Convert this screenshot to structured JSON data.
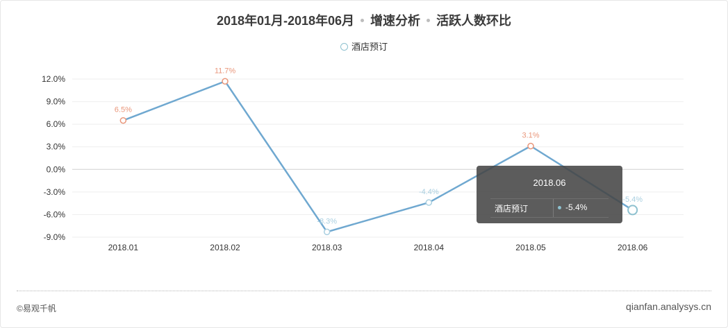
{
  "title": {
    "period": "2018年01月-2018年06月",
    "part2": "增速分析",
    "part3": "活跃人数环比"
  },
  "chart_data": {
    "type": "line",
    "categories": [
      "2018.01",
      "2018.02",
      "2018.03",
      "2018.04",
      "2018.05",
      "2018.06"
    ],
    "series": [
      {
        "name": "酒店预订",
        "values": [
          6.5,
          11.7,
          -8.3,
          -4.4,
          3.1,
          -5.4
        ],
        "labels": [
          "6.5%",
          "11.7%",
          "-8.3%",
          "-4.4%",
          "3.1%",
          "-5.4%"
        ]
      }
    ],
    "yticks": [
      12,
      9,
      6,
      3,
      0,
      -3,
      -6,
      -9
    ],
    "ytick_labels": [
      "12.0%",
      "9.0%",
      "6.0%",
      "3.0%",
      "0.0%",
      "-3.0%",
      "-6.0%",
      "-9.0%"
    ],
    "ylim": [
      -9,
      12
    ],
    "grid": true,
    "legend_position": "top-center",
    "colors": {
      "line": "#6fa8d0",
      "positive_marker": "#e9967a",
      "negative_marker": "#a9cfe0",
      "highlight_marker": "#8ec1cf"
    }
  },
  "tooltip": {
    "title": "2018.06",
    "series_name": "酒店预订",
    "value": "-5.4%"
  },
  "footer": {
    "left": "©易观千帆",
    "right": "qianfan.analysys.cn"
  }
}
